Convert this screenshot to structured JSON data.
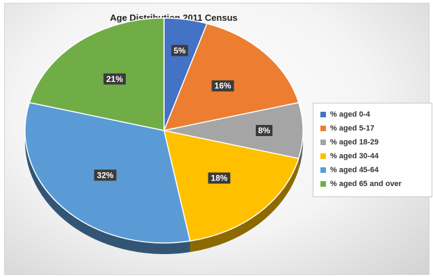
{
  "chart_data": {
    "type": "pie",
    "title": "Age Distribution 2011 Census",
    "legend_position": "right",
    "slices": [
      {
        "label": "% aged 0-4",
        "value": 5,
        "display": "5%",
        "color": "#4472c4"
      },
      {
        "label": "% aged 5-17",
        "value": 16,
        "display": "16%",
        "color": "#ed7d31"
      },
      {
        "label": "% aged 18-29",
        "value": 8,
        "display": "8%",
        "color": "#a5a5a5"
      },
      {
        "label": "% aged 30-44",
        "value": 18,
        "display": "18%",
        "color": "#ffc000"
      },
      {
        "label": "% aged 45-64",
        "value": 32,
        "display": "32%",
        "color": "#5b9bd5"
      },
      {
        "label": "% aged 65 and over",
        "value": 21,
        "display": "21%",
        "color": "#70ad47"
      }
    ]
  }
}
